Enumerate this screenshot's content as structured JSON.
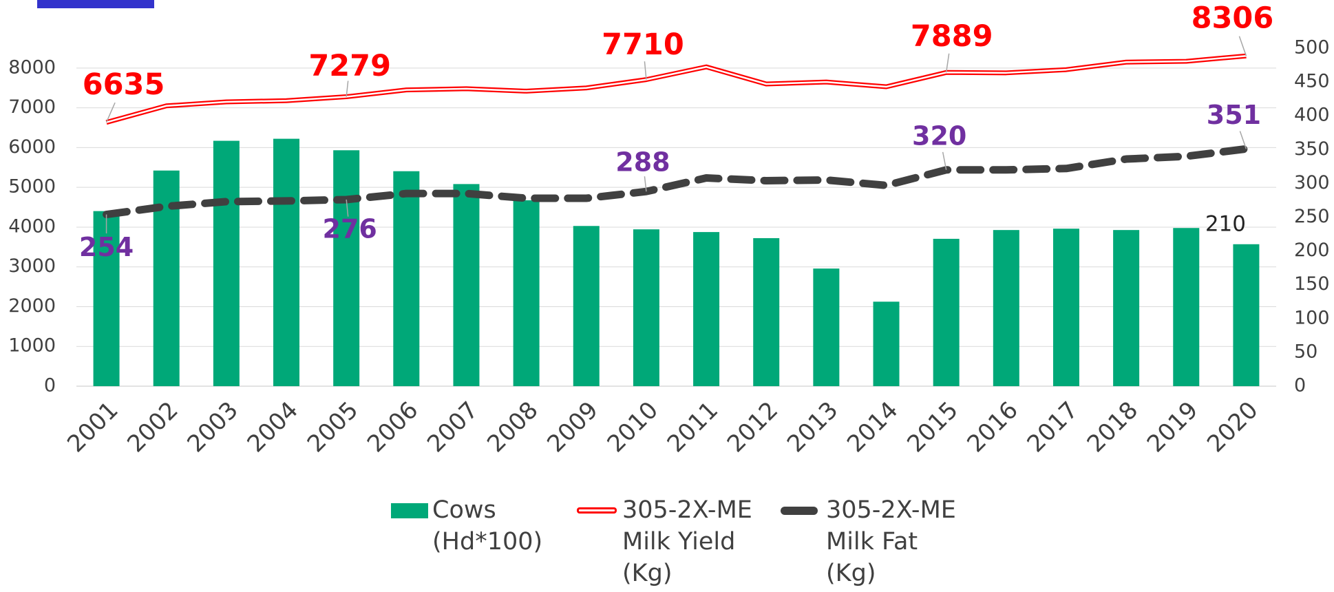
{
  "chart_data": {
    "type": "bar_line",
    "categories": [
      "2001",
      "2002",
      "2003",
      "2004",
      "2005",
      "2006",
      "2007",
      "2008",
      "2009",
      "2010",
      "2011",
      "2012",
      "2013",
      "2014",
      "2015",
      "2016",
      "2017",
      "2018",
      "2019",
      "2020"
    ],
    "series": [
      {
        "name": "Cows (Hd*100)",
        "type": "bar",
        "axis": "y2",
        "color": "#00a878",
        "values": [
          259,
          319,
          363,
          366,
          349,
          318,
          299,
          275,
          237,
          232,
          228,
          219,
          174,
          125,
          218,
          231,
          233,
          231,
          234,
          210
        ],
        "labeled_points": [
          19
        ],
        "label_color": "#222222"
      },
      {
        "name": "305-2X-ME Milk Yield (Kg)",
        "type": "line",
        "axis": "y",
        "color": "#ff0000",
        "values": [
          6635,
          7050,
          7150,
          7180,
          7279,
          7450,
          7480,
          7420,
          7500,
          7710,
          8030,
          7600,
          7650,
          7530,
          7889,
          7880,
          7960,
          8150,
          8170,
          8306
        ],
        "labeled_points": [
          0,
          4,
          9,
          14,
          19
        ],
        "label_color": "#ff0000"
      },
      {
        "name": "305-2X-ME Milk Fat (Kg)",
        "type": "line",
        "axis": "y2",
        "color": "#404040",
        "dashed": true,
        "values": [
          254,
          266,
          273,
          274,
          276,
          285,
          285,
          278,
          278,
          288,
          308,
          304,
          305,
          297,
          320,
          320,
          322,
          336,
          340,
          351
        ],
        "labeled_points": [
          0,
          4,
          9,
          14,
          19
        ],
        "label_color": "#7030a0"
      }
    ],
    "ylim": [
      0,
      8500
    ],
    "yticks": [
      0,
      1000,
      2000,
      3000,
      4000,
      5000,
      6000,
      7000,
      8000
    ],
    "y2lim": [
      0,
      500
    ],
    "y2ticks": [
      0,
      50,
      100,
      150,
      200,
      250,
      300,
      350,
      400,
      450,
      500
    ],
    "grid": true,
    "legend": "bottom"
  }
}
